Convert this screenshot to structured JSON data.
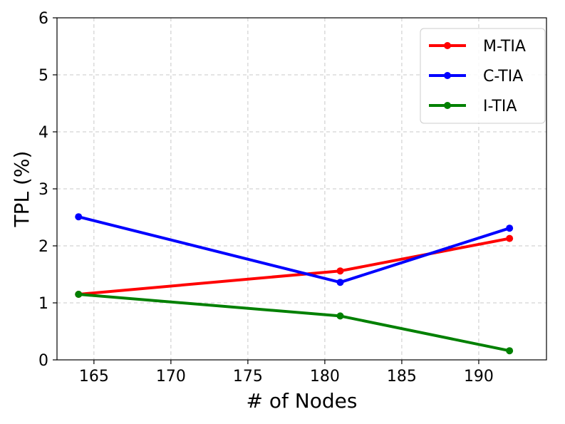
{
  "chart_data": {
    "type": "line",
    "xlabel": "# of Nodes",
    "ylabel": "TPL (%)",
    "x": [
      164,
      181,
      192
    ],
    "xlim": [
      162.6,
      194.4
    ],
    "ylim": [
      0,
      6
    ],
    "xticks": [
      165,
      170,
      175,
      180,
      185,
      190
    ],
    "yticks": [
      0,
      1,
      2,
      3,
      4,
      5,
      6
    ],
    "grid": true,
    "legend_position": "top-right",
    "series": [
      {
        "name": "M-TIA",
        "color": "#ff0000",
        "values": [
          1.15,
          1.56,
          2.13
        ]
      },
      {
        "name": "C-TIA",
        "color": "#0000ff",
        "values": [
          2.51,
          1.36,
          2.31
        ]
      },
      {
        "name": "I-TIA",
        "color": "#008000",
        "values": [
          1.15,
          0.77,
          0.16
        ]
      }
    ]
  }
}
